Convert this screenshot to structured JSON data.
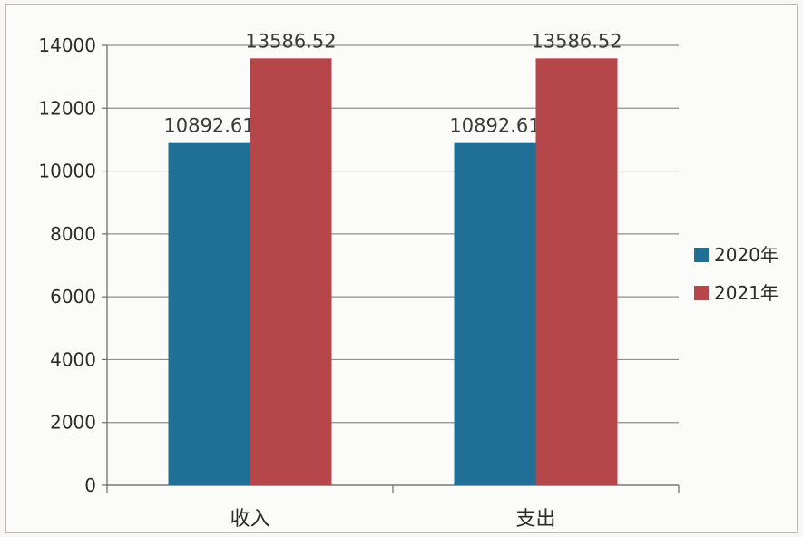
{
  "chart_data": {
    "type": "bar",
    "categories": [
      "收入",
      "支出"
    ],
    "series": [
      {
        "name": "2020年",
        "values": [
          10892.61,
          10892.61
        ],
        "color": "#1f6f96",
        "labels": [
          "10892.61",
          "10892.61"
        ]
      },
      {
        "name": "2021年",
        "values": [
          13586.52,
          13586.52
        ],
        "color": "#b5474a",
        "labels": [
          "13586.52",
          "13586.52"
        ]
      }
    ],
    "yticks": [
      "0",
      "2000",
      "4000",
      "6000",
      "8000",
      "10000",
      "12000",
      "14000"
    ],
    "ylim": [
      0,
      14000
    ],
    "grid": true,
    "legend_position": "right"
  }
}
